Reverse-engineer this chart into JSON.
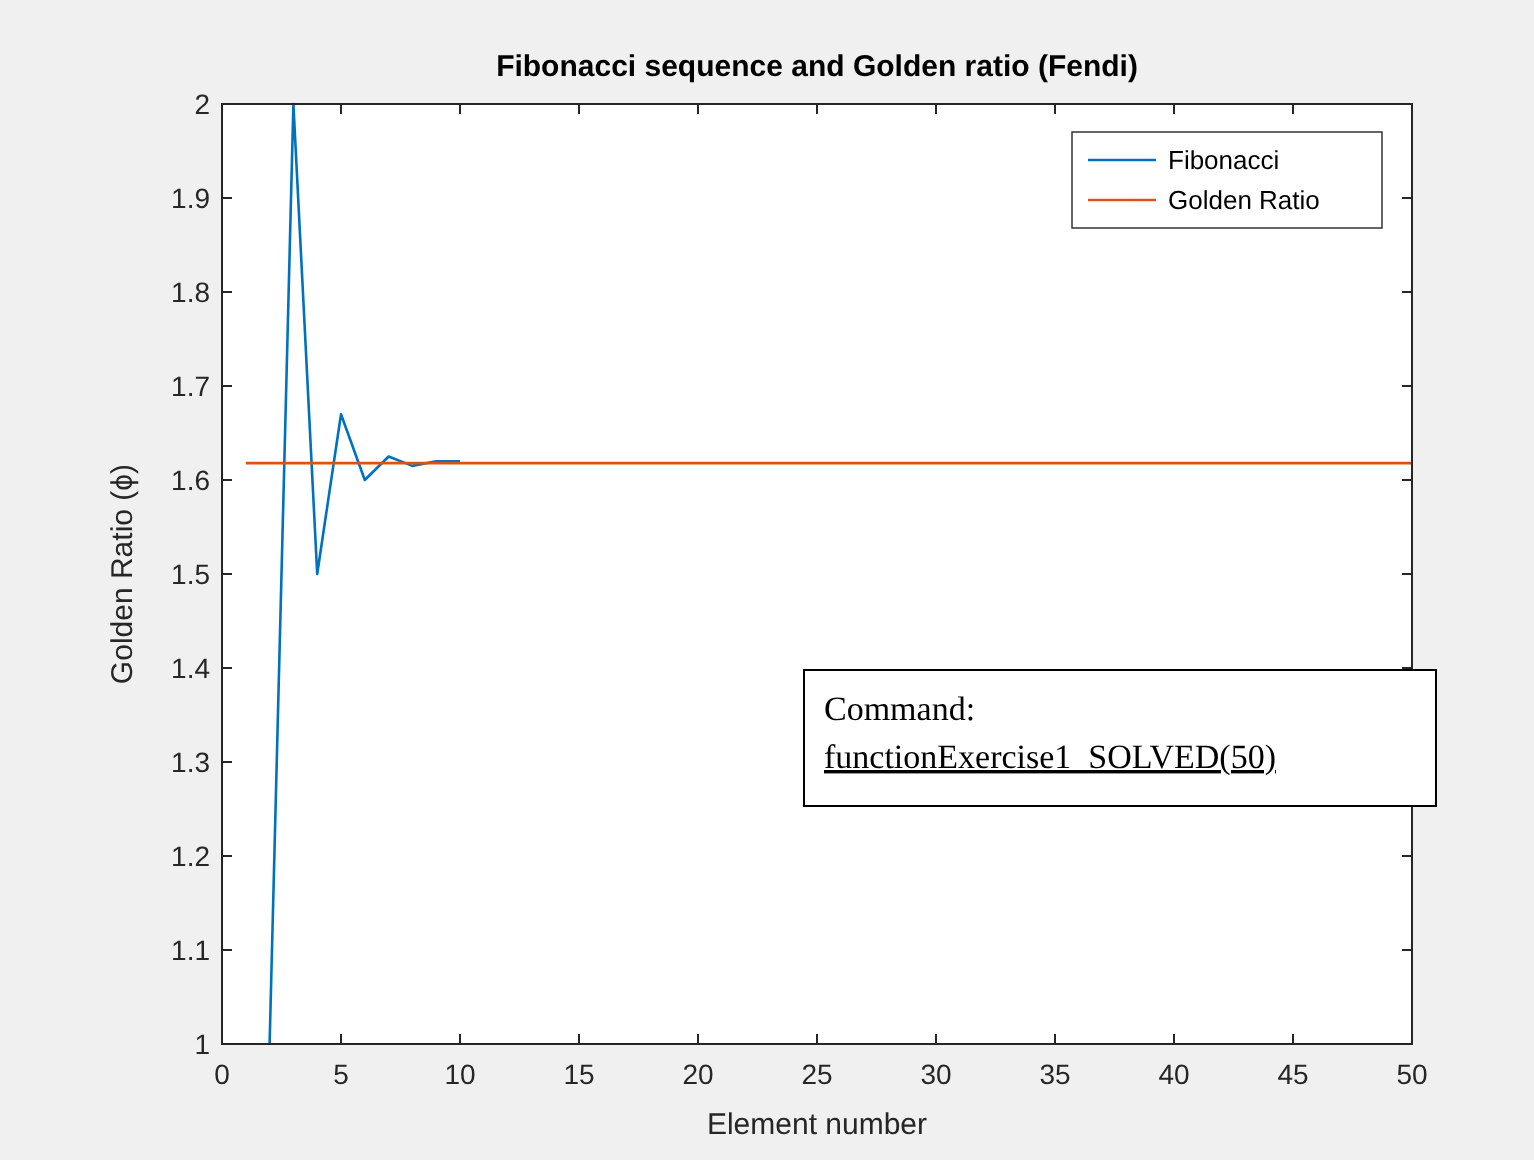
{
  "chart_data": {
    "type": "line",
    "title": "Fibonacci sequence and Golden ratio (Fendi)",
    "xlabel": "Element number",
    "ylabel": "Golden Ratio (ϕ)",
    "xlim": [
      0,
      50
    ],
    "xticks": [
      0,
      5,
      10,
      15,
      20,
      25,
      30,
      35,
      40,
      45,
      50
    ],
    "ylim": [
      1,
      2
    ],
    "yticks": [
      1,
      1.1,
      1.2,
      1.3,
      1.4,
      1.5,
      1.6,
      1.7,
      1.8,
      1.9,
      2
    ],
    "series": [
      {
        "name": "Fibonacci",
        "color": "#0072bd",
        "x": [
          2,
          3,
          4,
          5,
          6,
          7,
          8,
          9,
          10
        ],
        "values": [
          1,
          2,
          1.5,
          1.67,
          1.6,
          1.625,
          1.615,
          1.62,
          1.62
        ]
      },
      {
        "name": "Golden Ratio",
        "color": "#d95319",
        "x": [
          1,
          50
        ],
        "values": [
          1.618,
          1.618
        ]
      }
    ],
    "legend": "top right",
    "grid": false,
    "annotations": [
      "Command:",
      "functionExercise1_SOLVED(50)"
    ]
  }
}
